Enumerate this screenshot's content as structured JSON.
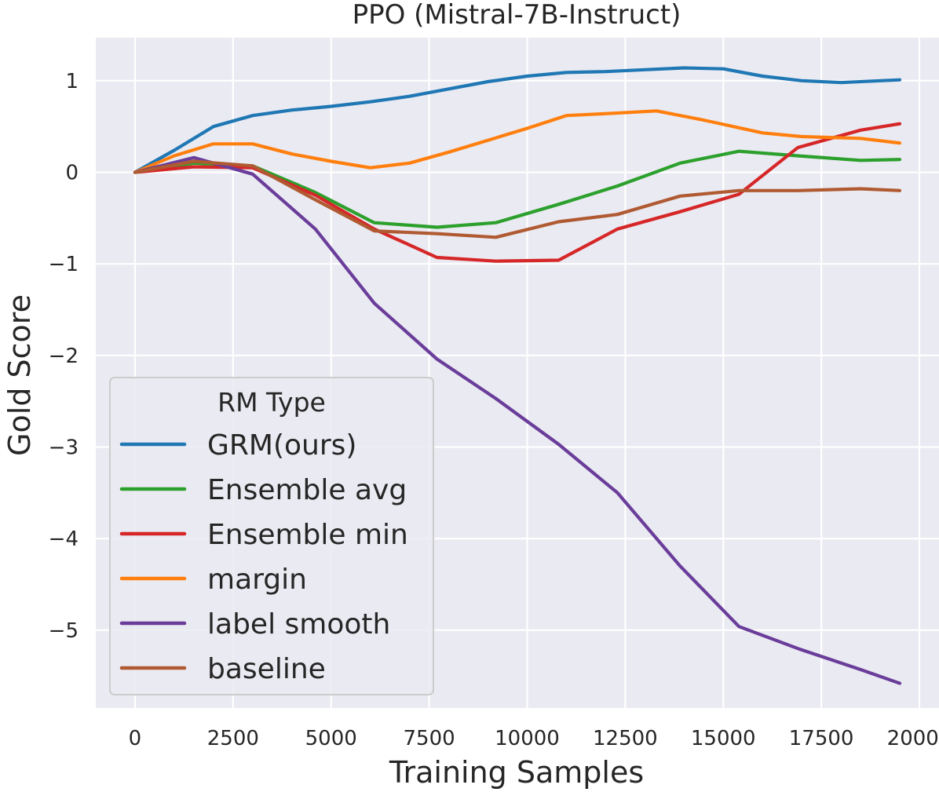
{
  "chart_data": {
    "type": "line",
    "title": "PPO (Mistral-7B-Instruct)",
    "xlabel": "Training Samples",
    "ylabel": "Gold Score",
    "xlim": [
      -1000,
      20500
    ],
    "ylim": [
      -5.85,
      1.47
    ],
    "xticks": [
      0,
      2500,
      5000,
      7500,
      10000,
      12500,
      15000,
      17500,
      20000
    ],
    "xtick_labels": [
      "0",
      "2500",
      "5000",
      "7500",
      "10000",
      "12500",
      "15000",
      "17500",
      "20000"
    ],
    "yticks": [
      1,
      0,
      -1,
      -2,
      -3,
      -4,
      -5
    ],
    "ytick_labels": [
      "1",
      "0",
      "−1",
      "−2",
      "−3",
      "−4",
      "−5"
    ],
    "grid": true,
    "legend": {
      "title": "RM Type",
      "location": "lower-left"
    },
    "series": [
      {
        "name": "GRM(ours)",
        "color": "#1f77b4",
        "x": [
          0,
          1000,
          2000,
          3000,
          4000,
          5000,
          6000,
          7000,
          8000,
          9000,
          10000,
          11000,
          12000,
          13000,
          14000,
          15000,
          16000,
          17000,
          18000,
          19500
        ],
        "y": [
          0,
          0.24,
          0.5,
          0.62,
          0.68,
          0.72,
          0.77,
          0.83,
          0.91,
          0.99,
          1.05,
          1.09,
          1.1,
          1.12,
          1.14,
          1.13,
          1.05,
          1.0,
          0.98,
          1.01
        ]
      },
      {
        "name": "Ensemble avg",
        "color": "#2ca02c",
        "x": [
          0,
          1500,
          3000,
          4600,
          6100,
          7700,
          9200,
          10800,
          12300,
          13900,
          15400,
          16900,
          18500,
          19500
        ],
        "y": [
          0,
          0.1,
          0.07,
          -0.22,
          -0.55,
          -0.6,
          -0.55,
          -0.35,
          -0.15,
          0.1,
          0.23,
          0.18,
          0.13,
          0.14
        ]
      },
      {
        "name": "Ensemble min",
        "color": "#d62728",
        "x": [
          0,
          1500,
          3000,
          4600,
          6100,
          7700,
          9200,
          10800,
          12300,
          13900,
          15400,
          16900,
          18500,
          19500
        ],
        "y": [
          0,
          0.06,
          0.05,
          -0.25,
          -0.62,
          -0.93,
          -0.97,
          -0.96,
          -0.62,
          -0.43,
          -0.24,
          0.27,
          0.46,
          0.53
        ]
      },
      {
        "name": "margin",
        "color": "#ff7f0e",
        "x": [
          0,
          1000,
          2000,
          3000,
          4000,
          5000,
          6000,
          7000,
          8000,
          9000,
          10000,
          11000,
          12000,
          13300,
          14500,
          16000,
          17000,
          18500,
          19500
        ],
        "y": [
          0,
          0.18,
          0.31,
          0.31,
          0.2,
          0.12,
          0.05,
          0.1,
          0.22,
          0.35,
          0.48,
          0.62,
          0.64,
          0.67,
          0.57,
          0.43,
          0.39,
          0.37,
          0.32
        ]
      },
      {
        "name": "label smooth",
        "color": "#6a3d9a",
        "x": [
          0,
          1500,
          3000,
          4600,
          6100,
          7700,
          9200,
          10800,
          12300,
          13900,
          15400,
          16900,
          18500,
          19500
        ],
        "y": [
          0,
          0.16,
          -0.02,
          -0.62,
          -1.43,
          -2.04,
          -2.47,
          -2.97,
          -3.5,
          -4.3,
          -4.96,
          -5.2,
          -5.43,
          -5.58
        ]
      },
      {
        "name": "baseline",
        "color": "#b05a32",
        "x": [
          0,
          1500,
          3000,
          4600,
          6100,
          7700,
          9200,
          10800,
          12300,
          13900,
          15400,
          16900,
          18500,
          19500
        ],
        "y": [
          0,
          0.12,
          0.07,
          -0.3,
          -0.64,
          -0.67,
          -0.71,
          -0.54,
          -0.46,
          -0.26,
          -0.2,
          -0.2,
          -0.18,
          -0.2
        ]
      }
    ]
  }
}
